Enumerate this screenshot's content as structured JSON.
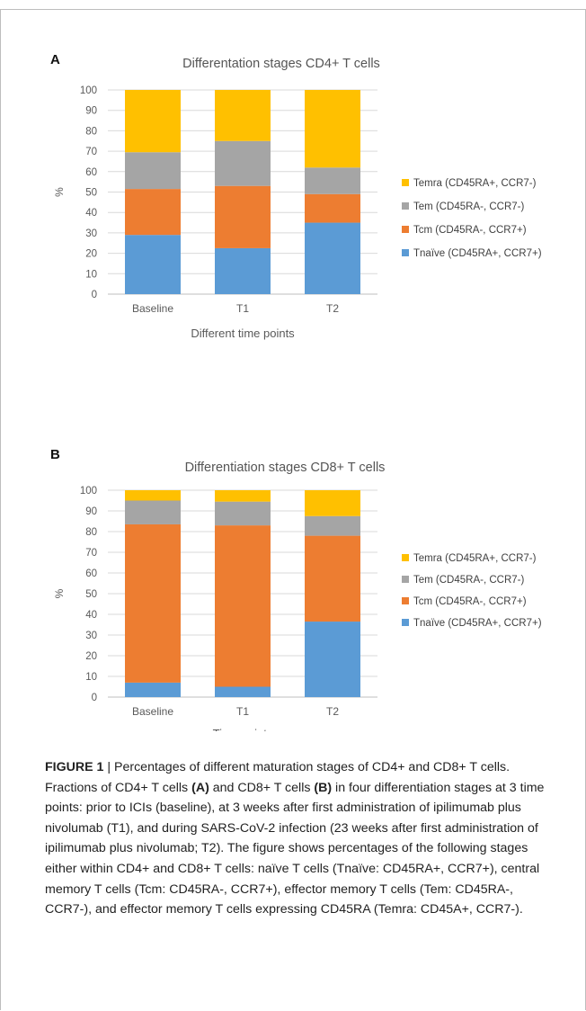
{
  "chart_data": [
    {
      "panel": "A",
      "type": "bar",
      "stacked": true,
      "title": "Differentation stages CD4+ T cells",
      "xlabel": "Different time points",
      "ylabel": "%",
      "ylim": [
        0,
        100
      ],
      "yticks": [
        "0",
        "10",
        "20",
        "30",
        "40",
        "50",
        "60",
        "70",
        "80",
        "90",
        "100"
      ],
      "categories": [
        "Baseline",
        "T1",
        "T2"
      ],
      "legend_position": "right",
      "series": [
        {
          "name": "Tnaïve (CD45RA+, CCR7+)",
          "color": "#5b9bd5",
          "values": [
            29,
            22.5,
            35
          ]
        },
        {
          "name": "Tcm (CD45RA-, CCR7+)",
          "color": "#ed7d31",
          "values": [
            22.5,
            30.5,
            14
          ]
        },
        {
          "name": "Tem (CD45RA-, CCR7-)",
          "color": "#a5a5a5",
          "values": [
            18,
            22,
            13
          ]
        },
        {
          "name": "Temra (CD45RA+, CCR7-)",
          "color": "#ffc000",
          "values": [
            30.5,
            25,
            38
          ]
        }
      ]
    },
    {
      "panel": "B",
      "type": "bar",
      "stacked": true,
      "title": "Differentiation stages CD8+ T cells",
      "xlabel": "Time points",
      "ylabel": "%",
      "ylim": [
        0,
        100
      ],
      "yticks": [
        "0",
        "10",
        "20",
        "30",
        "40",
        "50",
        "60",
        "70",
        "80",
        "90",
        "100"
      ],
      "categories": [
        "Baseline",
        "T1",
        "T2"
      ],
      "legend_position": "right",
      "series": [
        {
          "name": "Tnaïve (CD45RA+, CCR7+)",
          "color": "#5b9bd5",
          "values": [
            7,
            5,
            36.5
          ]
        },
        {
          "name": "Tcm (CD45RA-, CCR7+)",
          "color": "#ed7d31",
          "values": [
            76.5,
            78,
            41.5
          ]
        },
        {
          "name": "Tem (CD45RA-, CCR7-)",
          "color": "#a5a5a5",
          "values": [
            11.5,
            11.5,
            9.5
          ]
        },
        {
          "name": "Temra (CD45RA+, CCR7-)",
          "color": "#ffc000",
          "values": [
            5,
            5.5,
            12.5
          ]
        }
      ]
    }
  ],
  "panel_labels": {
    "a": "A",
    "b": "B"
  },
  "caption": {
    "label": "FIGURE 1",
    "separator": " | ",
    "s1": "Percentages of different maturation stages of CD4+ and CD8+ T cells. Fractions of CD4+ T cells ",
    "ref_a": "(A)",
    "s2": " and CD8+ T cells ",
    "ref_b": "(B)",
    "s3": " in four differentiation stages at 3 time points: prior to ICIs (baseline), at 3 weeks after first administration of ipilimumab plus nivolumab (T1), and during SARS-CoV-2 infection (23 weeks after first administration of ipilimumab plus nivolumab; T2). The figure shows percentages of the following stages either within CD4+ and CD8+ T cells: naïve T cells (Tnaïve: CD45RA+, CCR7+), central memory T cells (Tcm: CD45RA-, CCR7+), effector memory T cells (Tem: CD45RA-, CCR7-), and effector memory T cells expressing CD45RA (Temra: CD45A+, CCR7-)."
  }
}
